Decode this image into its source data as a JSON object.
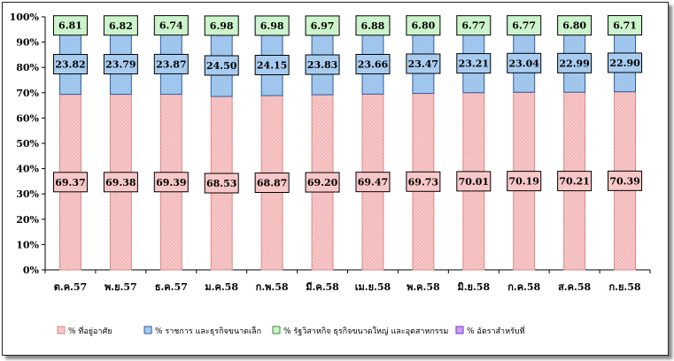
{
  "chart_data": {
    "type": "bar",
    "stacked": true,
    "percent": true,
    "categories": [
      "ต.ค.57",
      "พ.ย.57",
      "ธ.ค.57",
      "ม.ค.58",
      "ก.พ.58",
      "มี.ค.58",
      "เม.ย.58",
      "พ.ค.58",
      "มิ.ย.58",
      "ก.ค.58",
      "ส.ค.58",
      "ก.ย.58"
    ],
    "series": [
      {
        "name": "% ที่อยู่อาศัย",
        "color": "#f8c8c8",
        "border": "#d88888",
        "values": [
          69.37,
          69.38,
          69.39,
          68.53,
          68.87,
          69.2,
          69.47,
          69.73,
          70.01,
          70.19,
          70.21,
          70.39
        ],
        "labels": [
          "69.37",
          "69.38",
          "69.39",
          "68.53",
          "68.87",
          "69.20",
          "69.47",
          "69.73",
          "70.01",
          "70.19",
          "70.21",
          "70.39"
        ]
      },
      {
        "name": "% ราชการ และธุรกิจขนาดเล็ก",
        "color": "#a8ccf0",
        "border": "#2f5aa0",
        "values": [
          23.82,
          23.79,
          23.87,
          24.5,
          24.15,
          23.83,
          23.66,
          23.47,
          23.21,
          23.04,
          22.99,
          22.9
        ],
        "labels": [
          "23.82",
          "23.79",
          "23.87",
          "24.50",
          "24.15",
          "23.83",
          "23.66",
          "23.47",
          "23.21",
          "23.04",
          "22.99",
          "22.90"
        ]
      },
      {
        "name": "% รัฐวิสาหกิจ ธุรกิจขนาดใหญ่ และอุตสาหกรรม",
        "color": "#ccf4cc",
        "border": "#3a8a3a",
        "values": [
          6.81,
          6.82,
          6.74,
          6.98,
          6.98,
          6.97,
          6.88,
          6.8,
          6.77,
          6.77,
          6.8,
          6.71
        ],
        "labels": [
          "6.81",
          "6.82",
          "6.74",
          "6.98",
          "6.98",
          "6.97",
          "6.88",
          "6.80",
          "6.77",
          "6.77",
          "6.80",
          "6.71"
        ]
      },
      {
        "name": "% อัตราสำหรับที่",
        "color": "#cc99ff",
        "border": "#7a3ab0",
        "values": [
          0,
          0,
          0,
          0,
          0,
          0,
          0,
          0,
          0,
          0,
          0,
          0
        ],
        "labels": []
      }
    ],
    "ylim": [
      0,
      100
    ],
    "yticks": [
      "0%",
      "10%",
      "20%",
      "30%",
      "40%",
      "50%",
      "60%",
      "70%",
      "80%",
      "90%",
      "100%"
    ],
    "legend_position": "bottom",
    "grid": false
  }
}
